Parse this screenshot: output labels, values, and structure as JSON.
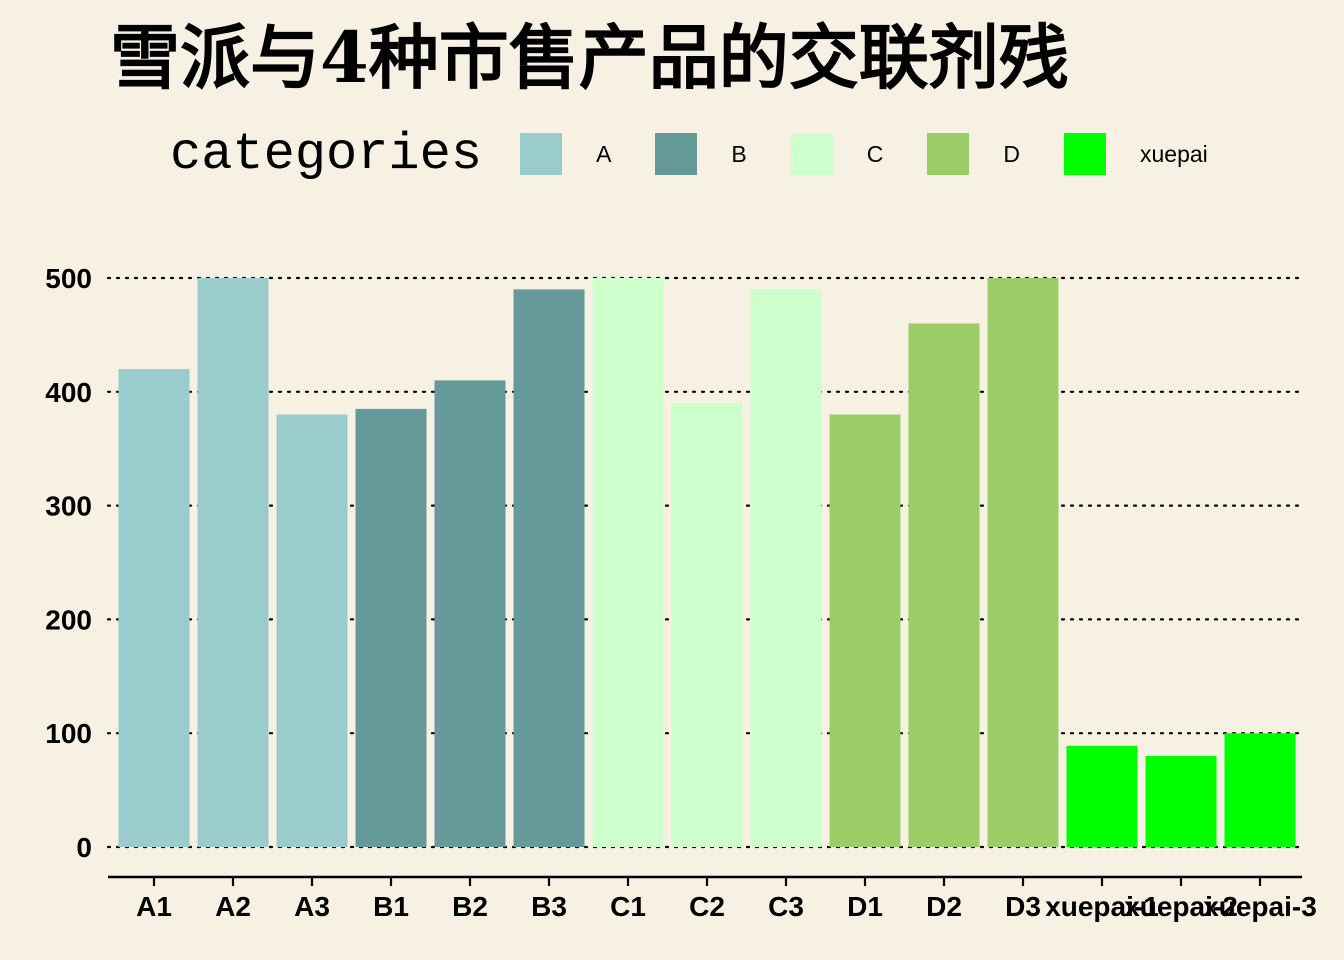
{
  "chart_data": {
    "type": "bar",
    "title": "雪派与4种市售产品的交联剂残",
    "legend": {
      "title": "categories",
      "placement": "top",
      "items": [
        {
          "label": "A",
          "color": "#9acbcd"
        },
        {
          "label": "B",
          "color": "#669a9a"
        },
        {
          "label": "C",
          "color": "#ccffcc"
        },
        {
          "label": "D",
          "color": "#9acd66"
        },
        {
          "label": "xuepai",
          "color": "#00ff00"
        }
      ]
    },
    "categories": [
      "A1",
      "A2",
      "A3",
      "B1",
      "B2",
      "B3",
      "C1",
      "C2",
      "C3",
      "D1",
      "D2",
      "D3",
      "xuepai-1",
      "xuepai-2",
      "xuepai-3"
    ],
    "values": [
      420,
      500,
      380,
      385,
      410,
      490,
      500,
      390,
      490,
      380,
      460,
      500,
      89,
      80,
      100
    ],
    "groups": [
      "A",
      "A",
      "A",
      "B",
      "B",
      "B",
      "C",
      "C",
      "C",
      "D",
      "D",
      "D",
      "xuepai",
      "xuepai",
      "xuepai"
    ],
    "ylim": [
      0,
      500
    ],
    "yticks": [
      0,
      100,
      200,
      300,
      400,
      500
    ],
    "xlabel": "",
    "ylabel": "",
    "grid": "horizontal dotted"
  }
}
